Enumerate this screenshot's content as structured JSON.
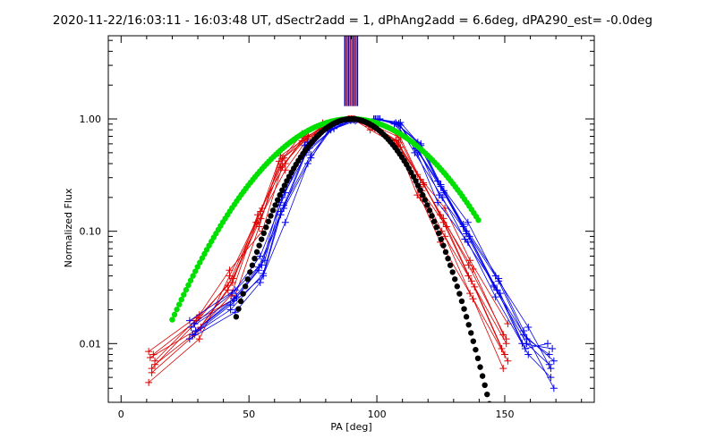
{
  "chart_data": {
    "type": "scatter",
    "title": "2020-11-22/16:03:11 - 16:03:48 UT, dSectr2add = 1, dPhAng2add = 6.6deg, dPA290_est= -0.0deg",
    "xlabel": "PA [deg]",
    "ylabel": "Normalized Flux",
    "xlim": [
      -5,
      185
    ],
    "ylim_log": [
      0.003,
      5.5
    ],
    "x_ticks": [
      0,
      50,
      100,
      150
    ],
    "x_tick_labels": [
      "0",
      "50",
      "100",
      "150"
    ],
    "y_ticks": [
      0.01,
      0.1,
      1.0
    ],
    "y_tick_labels": [
      "0.01",
      "0.10",
      "1.00"
    ],
    "grid": false,
    "colors": {
      "red": "#dd0000",
      "blue": "#0000ee",
      "green": "#00e000",
      "black": "#000000",
      "purple": "#9900aa"
    },
    "series": [
      {
        "name": "red-profiles",
        "color": "red",
        "style": "lines+plus",
        "x": [
          12,
          30,
          43,
          54,
          63,
          72,
          80,
          90,
          98,
          108,
          117,
          126,
          137,
          150
        ],
        "profiles": [
          [
            0.0045,
            0.011,
            0.04,
            0.16,
            0.44,
            0.74,
            0.9,
            1.0,
            0.92,
            0.72,
            0.32,
            0.16,
            0.055,
            0.015
          ],
          [
            0.0055,
            0.012,
            0.035,
            0.14,
            0.4,
            0.72,
            0.92,
            1.0,
            0.9,
            0.68,
            0.29,
            0.14,
            0.046,
            0.012
          ],
          [
            0.0065,
            0.013,
            0.03,
            0.13,
            0.37,
            0.7,
            0.9,
            1.0,
            0.88,
            0.65,
            0.27,
            0.12,
            0.04,
            0.01
          ],
          [
            0.0075,
            0.014,
            0.027,
            0.12,
            0.45,
            0.68,
            0.88,
            1.0,
            0.86,
            0.62,
            0.25,
            0.11,
            0.036,
            0.009
          ],
          [
            0.008,
            0.016,
            0.025,
            0.11,
            0.42,
            0.66,
            0.86,
            1.0,
            0.84,
            0.6,
            0.23,
            0.1,
            0.032,
            0.008
          ],
          [
            0.0085,
            0.018,
            0.045,
            0.1,
            0.38,
            0.64,
            0.84,
            1.0,
            0.82,
            0.58,
            0.21,
            0.09,
            0.028,
            0.007
          ],
          [
            0.006,
            0.015,
            0.038,
            0.12,
            0.35,
            0.62,
            0.82,
            1.0,
            0.8,
            0.56,
            0.2,
            0.08,
            0.025,
            0.006
          ],
          [
            0.007,
            0.017,
            0.033,
            0.15,
            0.47,
            0.7,
            0.88,
            1.0,
            0.85,
            0.64,
            0.26,
            0.13,
            0.05,
            0.011
          ]
        ]
      },
      {
        "name": "blue-profiles",
        "color": "blue",
        "style": "lines+plus",
        "x": [
          28,
          44,
          55,
          63,
          73,
          82,
          91,
          100,
          108,
          116,
          125,
          135,
          147,
          158,
          168
        ],
        "profiles": [
          [
            0.011,
            0.019,
            0.035,
            0.12,
            0.4,
            0.78,
            0.96,
            1.0,
            0.93,
            0.62,
            0.28,
            0.12,
            0.04,
            0.014,
            0.006
          ],
          [
            0.012,
            0.022,
            0.04,
            0.14,
            0.45,
            0.8,
            0.97,
            1.0,
            0.92,
            0.58,
            0.25,
            0.11,
            0.036,
            0.012,
            0.007
          ],
          [
            0.013,
            0.024,
            0.045,
            0.16,
            0.5,
            0.82,
            0.98,
            1.0,
            0.91,
            0.55,
            0.23,
            0.1,
            0.033,
            0.011,
            0.008
          ],
          [
            0.014,
            0.026,
            0.05,
            0.18,
            0.55,
            0.84,
            0.98,
            1.0,
            0.9,
            0.52,
            0.21,
            0.09,
            0.03,
            0.01,
            0.009
          ],
          [
            0.015,
            0.028,
            0.055,
            0.2,
            0.58,
            0.86,
            0.99,
            1.0,
            0.89,
            0.5,
            0.2,
            0.085,
            0.028,
            0.009,
            0.01
          ],
          [
            0.016,
            0.03,
            0.06,
            0.22,
            0.62,
            0.88,
            0.99,
            1.0,
            0.88,
            0.48,
            0.18,
            0.08,
            0.026,
            0.008,
            0.005
          ],
          [
            0.012,
            0.02,
            0.042,
            0.15,
            0.48,
            0.81,
            0.97,
            1.0,
            0.92,
            0.6,
            0.26,
            0.115,
            0.038,
            0.013,
            0.004
          ],
          [
            0.013,
            0.025,
            0.048,
            0.17,
            0.52,
            0.83,
            0.98,
            1.0,
            0.9,
            0.54,
            0.22,
            0.095,
            0.032,
            0.01,
            0.0065
          ]
        ]
      },
      {
        "name": "green-fit",
        "color": "green",
        "style": "thick-dots",
        "center": 90,
        "sigma": 24.4,
        "x_range": [
          20,
          140
        ]
      },
      {
        "name": "black-fit",
        "color": "black",
        "style": "thick-dots",
        "center": 90,
        "sigma": 15.8,
        "x_range": [
          45,
          145
        ]
      }
    ],
    "vertical_markers": [
      {
        "x": 87.5,
        "color": "blue"
      },
      {
        "x": 88.2,
        "color": "red"
      },
      {
        "x": 88.9,
        "color": "blue"
      },
      {
        "x": 89.6,
        "color": "purple"
      },
      {
        "x": 90.3,
        "color": "red"
      },
      {
        "x": 91.0,
        "color": "blue"
      },
      {
        "x": 91.7,
        "color": "red"
      },
      {
        "x": 92.4,
        "color": "blue"
      }
    ],
    "markers_y_range": [
      1.3,
      5.5
    ]
  }
}
